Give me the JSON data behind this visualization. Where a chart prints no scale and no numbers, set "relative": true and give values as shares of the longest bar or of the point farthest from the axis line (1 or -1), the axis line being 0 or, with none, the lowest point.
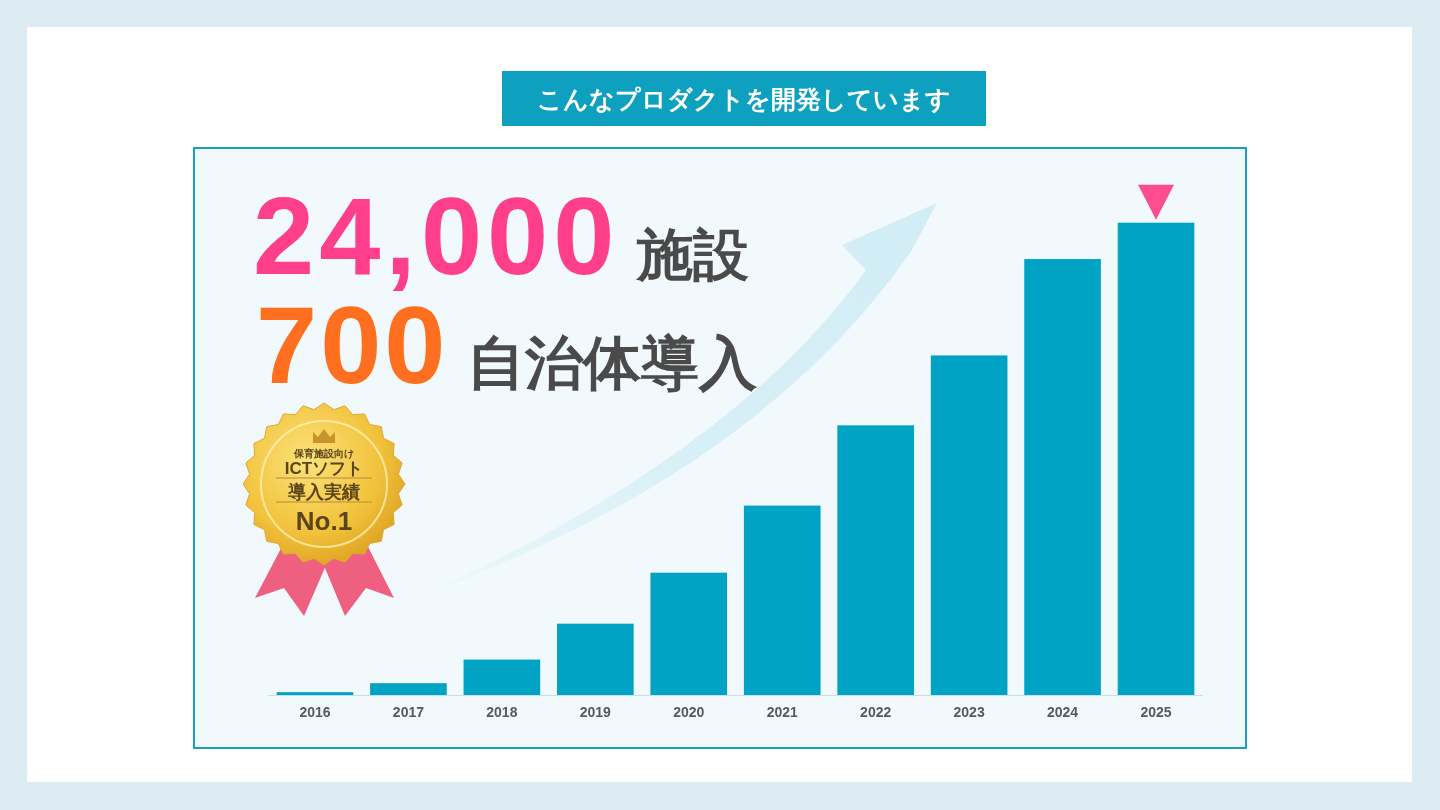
{
  "chart_data": {
    "type": "bar",
    "title": "こんなプロダクトを開発しています",
    "categories": [
      "2016",
      "2017",
      "2018",
      "2019",
      "2020",
      "2021",
      "2022",
      "2023",
      "2024",
      "2025"
    ],
    "values": [
      0.006,
      0.025,
      0.075,
      0.151,
      0.259,
      0.401,
      0.571,
      0.719,
      0.923,
      1
    ],
    "color": "#00a3c4",
    "relative": true,
    "annotations": [
      "24,000 施設",
      "700 自治体導入",
      "保育施設向け",
      "ICTソフト",
      "導入実績",
      "No.1"
    ]
  }
}
